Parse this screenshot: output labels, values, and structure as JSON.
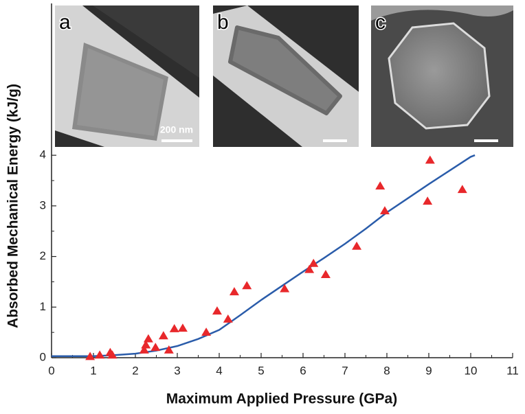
{
  "chart_data": {
    "type": "scatter",
    "x_label": "Maximum Applied Pressure (GPa)",
    "y_label": "Absorbed Mechanical Energy (kJ/g)",
    "xlim": [
      0,
      11
    ],
    "xticks": [
      0,
      1,
      2,
      3,
      4,
      5,
      6,
      7,
      8,
      9,
      10,
      11
    ],
    "ylim": [
      0,
      7
    ],
    "yticks": [
      0,
      1,
      2,
      3,
      4
    ],
    "points": {
      "color": "#e8282b",
      "x": [
        0.92,
        1.15,
        1.4,
        1.45,
        2.21,
        2.25,
        2.31,
        2.48,
        2.67,
        2.8,
        2.93,
        3.13,
        3.69,
        3.95,
        4.21,
        4.36,
        4.66,
        5.56,
        6.15,
        6.25,
        6.54,
        7.28,
        7.84,
        7.95,
        8.97,
        9.03,
        9.8
      ],
      "values": [
        0.02,
        0.05,
        0.1,
        0.05,
        0.15,
        0.25,
        0.37,
        0.2,
        0.43,
        0.15,
        0.57,
        0.58,
        0.5,
        0.92,
        0.76,
        1.3,
        1.42,
        1.36,
        1.74,
        1.86,
        1.64,
        2.2,
        3.39,
        2.9,
        3.09,
        3.9,
        3.32
      ]
    },
    "fit": {
      "color": "#2a5caa",
      "x": [
        0,
        1,
        1.5,
        2,
        2.5,
        3,
        3.5,
        4,
        4.5,
        5,
        5.5,
        6,
        6.5,
        7,
        7.5,
        8,
        8.5,
        9,
        9.5,
        10,
        10.1
      ],
      "values": [
        0.03,
        0.03,
        0.05,
        0.08,
        0.14,
        0.23,
        0.37,
        0.55,
        0.84,
        1.14,
        1.42,
        1.7,
        1.97,
        2.25,
        2.55,
        2.87,
        3.15,
        3.43,
        3.7,
        3.97,
        4.0
      ]
    },
    "insets": [
      {
        "label": "a",
        "scale": "200 nm"
      },
      {
        "label": "b"
      },
      {
        "label": "c"
      }
    ]
  }
}
